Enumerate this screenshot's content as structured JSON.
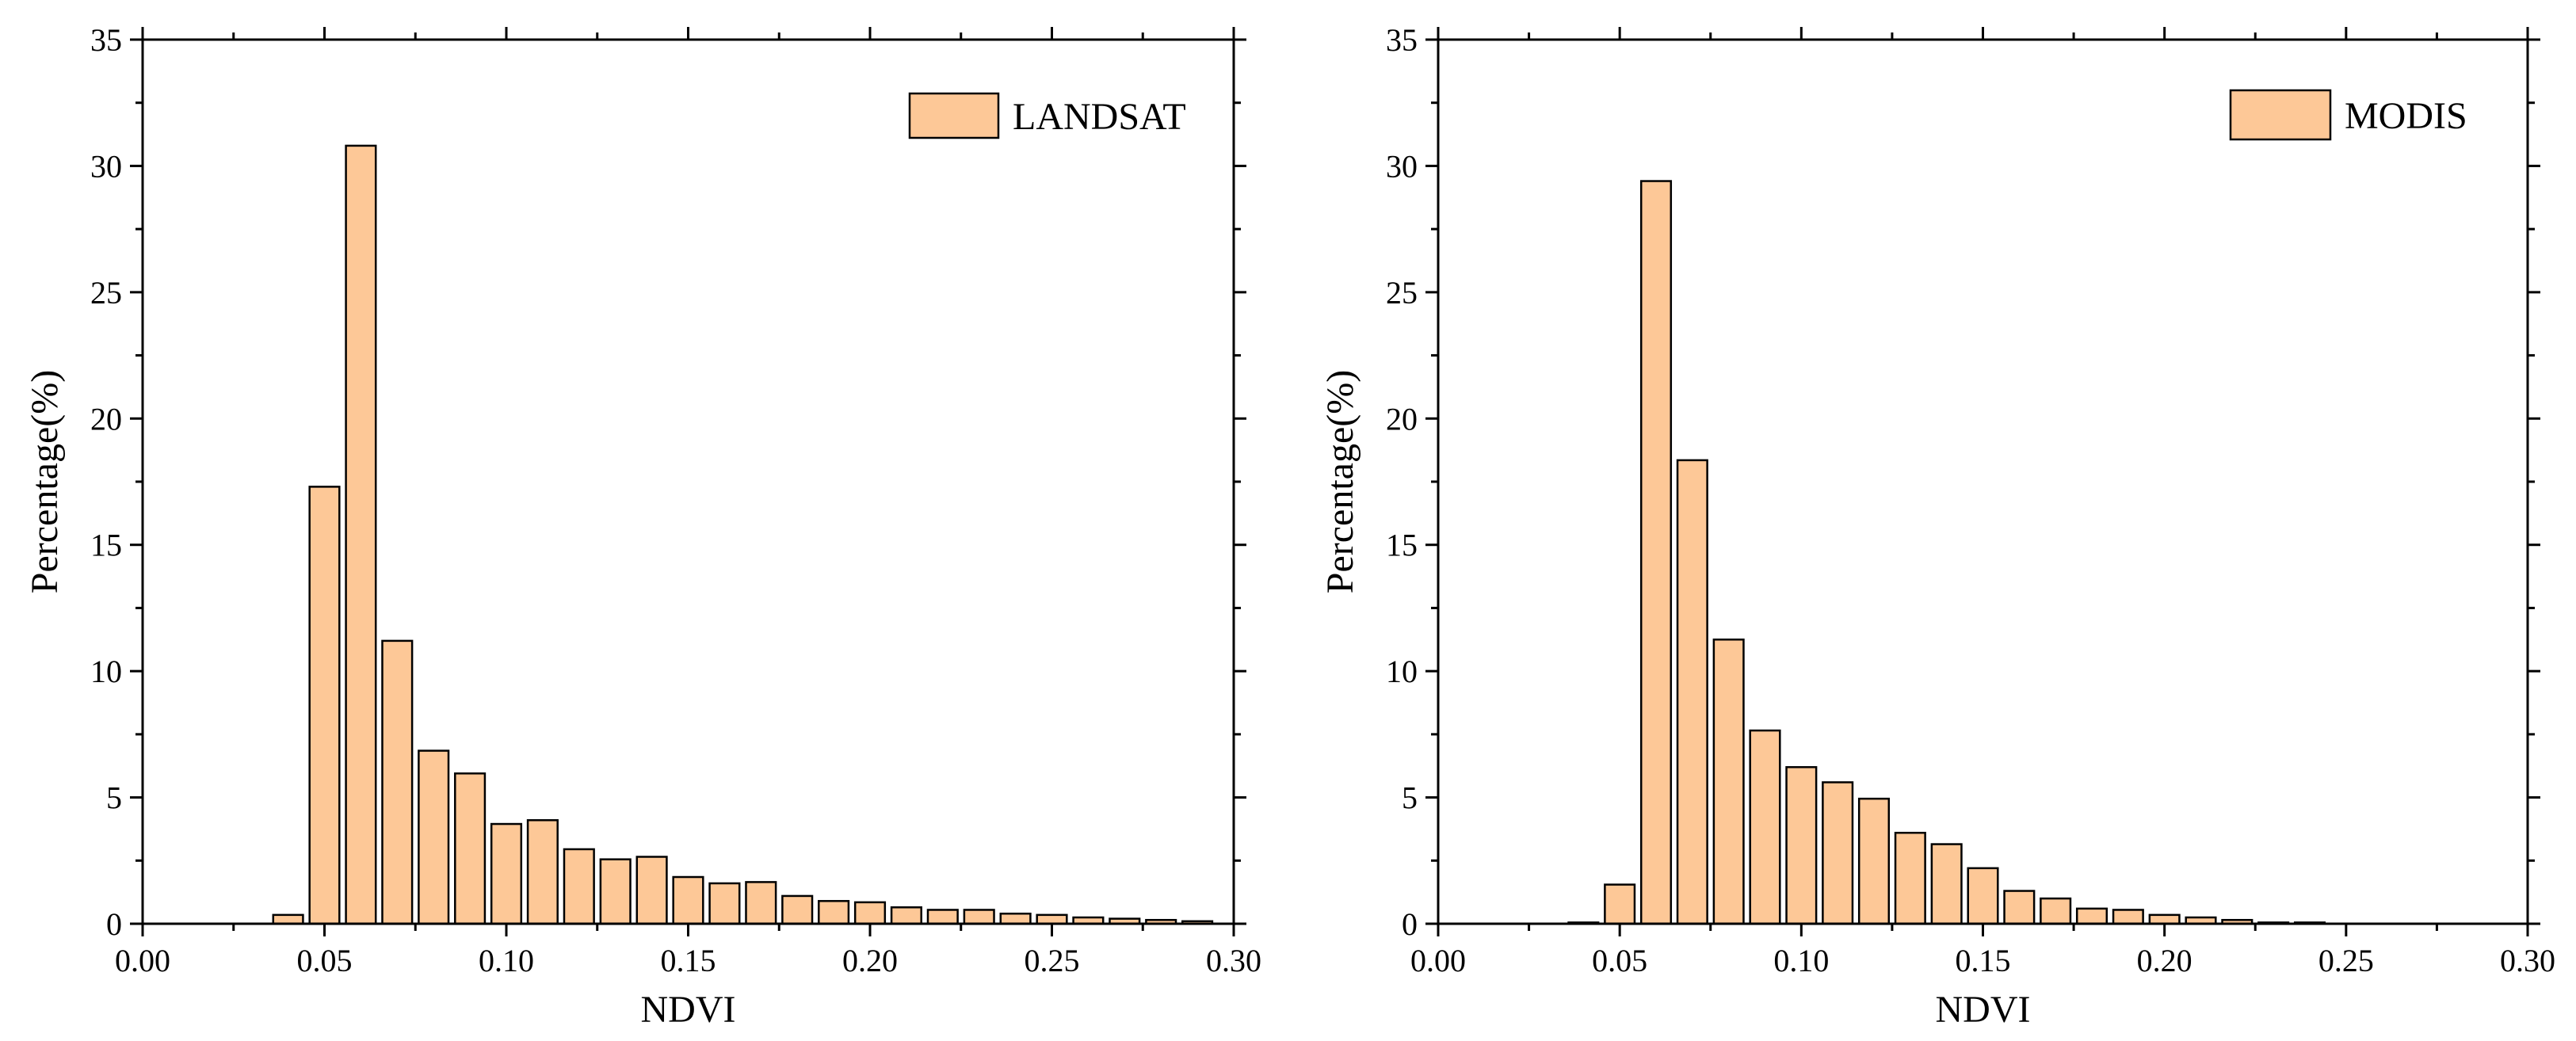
{
  "style": {
    "bar_color": "#FDC897",
    "edge_color": "#000000"
  },
  "chart_data": [
    {
      "type": "bar",
      "legend": "LANDSAT",
      "legend_position": "top-right",
      "xlabel": "NDVI",
      "ylabel": "Percentage(%)",
      "xlim": [
        0.0,
        0.3
      ],
      "ylim": [
        0,
        35
      ],
      "xticks": [
        "0.00",
        "0.05",
        "0.10",
        "0.15",
        "0.20",
        "0.25",
        "0.30"
      ],
      "yticks": [
        "0",
        "5",
        "10",
        "15",
        "20",
        "25",
        "30",
        "35"
      ],
      "bin_width": 0.01,
      "bins": [
        0.04,
        0.05,
        0.06,
        0.07,
        0.08,
        0.09,
        0.1,
        0.11,
        0.12,
        0.13,
        0.14,
        0.15,
        0.16,
        0.17,
        0.18,
        0.19,
        0.2,
        0.21,
        0.22,
        0.23,
        0.24,
        0.25,
        0.26,
        0.27,
        0.28,
        0.29
      ],
      "values": [
        0.35,
        17.3,
        30.8,
        11.2,
        6.85,
        5.95,
        3.95,
        4.1,
        2.95,
        2.55,
        2.65,
        1.85,
        1.6,
        1.65,
        1.1,
        0.9,
        0.85,
        0.65,
        0.55,
        0.55,
        0.4,
        0.35,
        0.25,
        0.2,
        0.15,
        0.1
      ]
    },
    {
      "type": "bar",
      "legend": "MODIS",
      "legend_position": "top-right",
      "xlabel": "NDVI",
      "ylabel": "Percentage(%)",
      "xlim": [
        0.0,
        0.3
      ],
      "ylim": [
        0,
        35
      ],
      "xticks": [
        "0.00",
        "0.05",
        "0.10",
        "0.15",
        "0.20",
        "0.25",
        "0.30"
      ],
      "yticks": [
        "0",
        "5",
        "10",
        "15",
        "20",
        "25",
        "30",
        "35"
      ],
      "bin_width": 0.01,
      "bins": [
        0.04,
        0.05,
        0.06,
        0.07,
        0.08,
        0.09,
        0.1,
        0.11,
        0.12,
        0.13,
        0.14,
        0.15,
        0.16,
        0.17,
        0.18,
        0.19,
        0.2,
        0.21,
        0.22,
        0.23,
        0.24
      ],
      "values": [
        0.05,
        1.55,
        29.4,
        18.35,
        11.25,
        7.65,
        6.2,
        5.6,
        4.95,
        3.6,
        3.15,
        2.2,
        1.3,
        1.0,
        0.6,
        0.55,
        0.35,
        0.25,
        0.15,
        0.05,
        0.05
      ]
    }
  ]
}
